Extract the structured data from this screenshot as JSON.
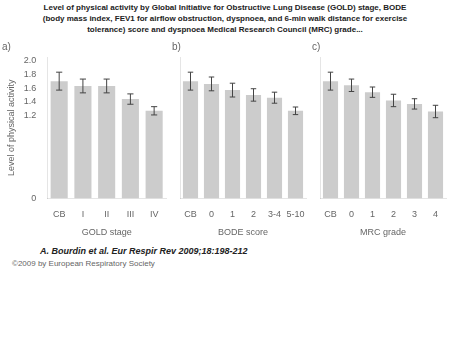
{
  "title": [
    "Level of physical activity by Global Initiative for Obstructive Lung Disease (GOLD) stage, BODE",
    "(body mass index, FEV1 for airflow obstruction, dyspnoea, and 6-min walk distance for exercise",
    "tolerance) score and dyspnoea Medical Research Council (MRC) grade..."
  ],
  "chart_data": [
    {
      "type": "bar",
      "title": "a)",
      "categories": [
        "CB",
        "I",
        "II",
        "III",
        "IV"
      ],
      "values": [
        1.7,
        1.63,
        1.63,
        1.44,
        1.27
      ],
      "errors": [
        0.13,
        0.1,
        0.1,
        0.075,
        0.06
      ],
      "color": "#cccccc",
      "xlabel": "GOLD stage",
      "ylabel": "Level of physical activity",
      "ylim": [
        0,
        2.05
      ],
      "yticks": [
        0,
        1.2,
        1.4,
        1.6,
        1.8,
        {
          "value": 2.0,
          "label": "2.0"
        }
      ],
      "grid": false
    },
    {
      "type": "bar",
      "title": "b)",
      "categories": [
        "CB",
        "0",
        "1",
        "2",
        "3-4",
        "5-10"
      ],
      "values": [
        1.7,
        1.66,
        1.57,
        1.5,
        1.46,
        1.27
      ],
      "errors": [
        0.13,
        0.1,
        0.1,
        0.09,
        0.08,
        0.055
      ],
      "color": "#cccccc",
      "xlabel": "BODE score",
      "ylim": [
        0,
        2.05
      ],
      "yticks": [
        0,
        1.2,
        1.4,
        1.6,
        1.8,
        {
          "value": 2.0,
          "label": "2.0"
        }
      ],
      "grid": false,
      "tick_labels": "x"
    },
    {
      "type": "bar",
      "title": "c)",
      "categories": [
        "CB",
        "0",
        "1",
        "2",
        "3",
        "4"
      ],
      "values": [
        1.7,
        1.64,
        1.54,
        1.42,
        1.37,
        1.26
      ],
      "errors": [
        0.13,
        0.09,
        0.075,
        0.09,
        0.075,
        0.09
      ],
      "color": "#cccccc",
      "xlabel": "MRC grade",
      "ylim": [
        0,
        2.05
      ],
      "yticks": [
        0,
        1.2,
        1.4,
        1.6,
        1.8,
        {
          "value": 2.0,
          "label": "2.0"
        }
      ],
      "grid": false,
      "tick_labels": "x"
    }
  ],
  "annotations": [
    "A. Bourdin et al. Eur Respir Rev 2009;18:198-212",
    "©2009 by European Respiratory Society"
  ]
}
